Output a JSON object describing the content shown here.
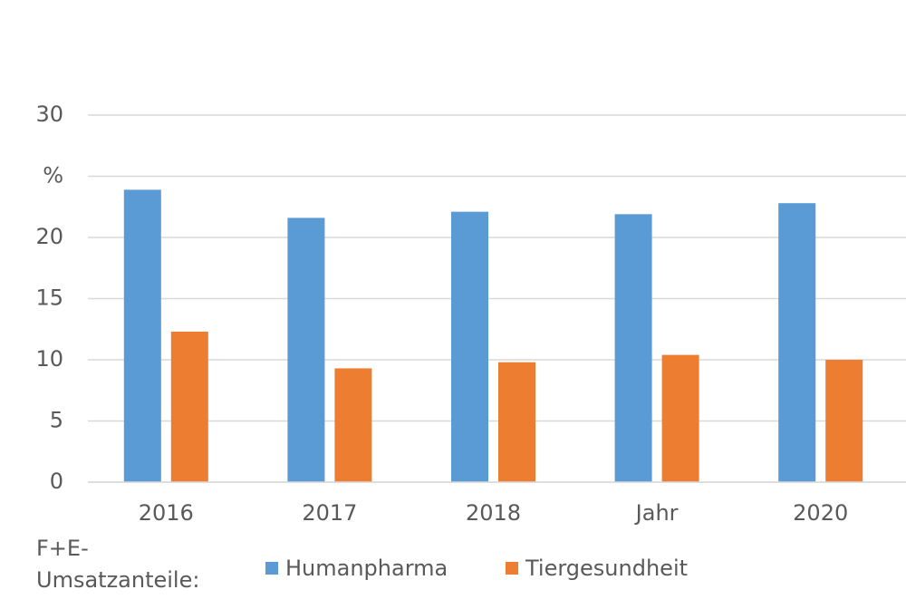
{
  "chart_data": {
    "type": "bar",
    "categories": [
      "2016",
      "2017",
      "2018",
      "Jahr",
      "2020"
    ],
    "series": [
      {
        "name": "Humanpharma",
        "color": "#5b9bd5",
        "values": [
          23.9,
          21.6,
          22.1,
          21.9,
          22.8
        ]
      },
      {
        "name": "Tiergesundheit",
        "color": "#ed7d31",
        "values": [
          12.3,
          9.3,
          9.8,
          10.4,
          10.0
        ]
      }
    ],
    "ylim": [
      0,
      30
    ],
    "yticks": [
      0,
      5,
      10,
      15,
      20,
      {
        "value": 25,
        "label": "%"
      },
      30
    ],
    "grid": true,
    "legend_title": "F+E-Umsatzanteile:",
    "legend_position": "bottom"
  }
}
